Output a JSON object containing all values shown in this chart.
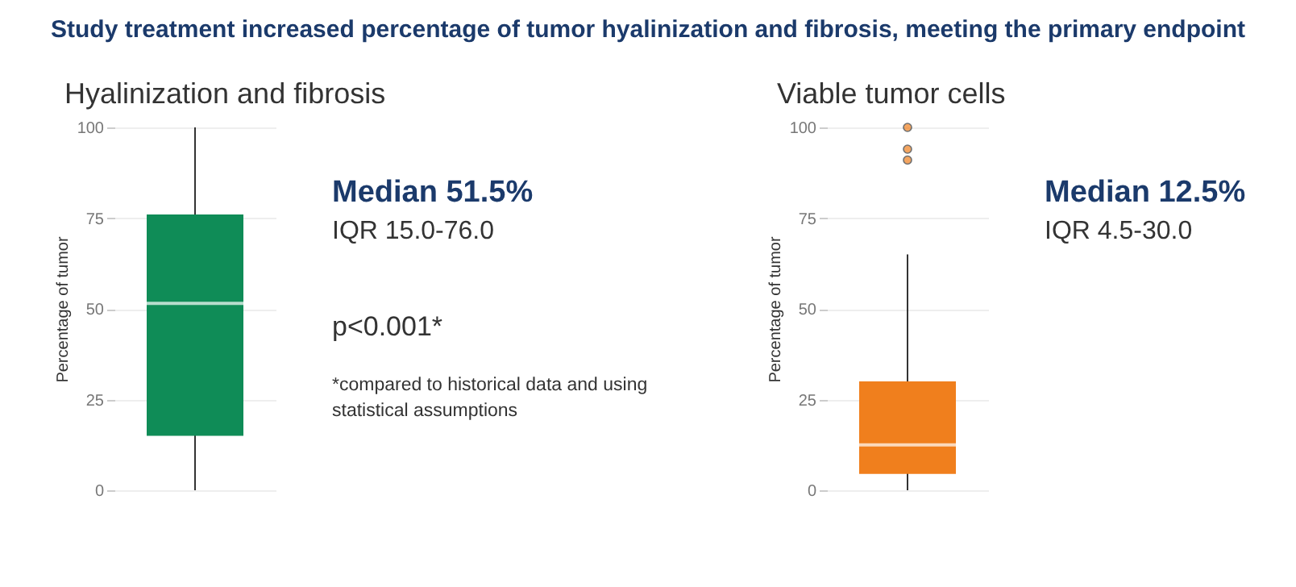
{
  "chart_data": [
    {
      "type": "box",
      "title": "Study treatment increased percentage of tumor hyalinization and fibrosis, meeting the primary endpoint",
      "subtitle": "Hyalinization and fibrosis",
      "ylabel": "Percentage of tumor",
      "categories": [
        null
      ],
      "series": [
        {
          "color": "#0f8c57",
          "boxes": [
            {
              "low": 0,
              "q1": 15,
              "median": 51.5,
              "q3": 76,
              "high": 100
            }
          ]
        }
      ],
      "ylim": [
        0,
        100
      ],
      "yticks": [
        0,
        25,
        50,
        75,
        100
      ],
      "grid": "y",
      "annotations": [
        "Median 51.5%",
        "IQR 15.0-76.0",
        "p<0.001*",
        "*compared to historical data and using statistical assumptions"
      ]
    },
    {
      "type": "box",
      "subtitle": "Viable tumor cells",
      "ylabel": "Percentage of tumor",
      "categories": [
        null
      ],
      "series": [
        {
          "color": "#f07f1d",
          "boxes": [
            {
              "low": 0,
              "q1": 4.5,
              "median": 12.5,
              "q3": 30,
              "high": 65,
              "outliers": [
                91,
                94,
                100
              ]
            }
          ]
        }
      ],
      "ylim": [
        0,
        100
      ],
      "yticks": [
        0,
        25,
        50,
        75,
        100
      ],
      "grid": "y",
      "annotations": [
        "Median 12.5%",
        "IQR 4.5-30.0"
      ]
    }
  ]
}
